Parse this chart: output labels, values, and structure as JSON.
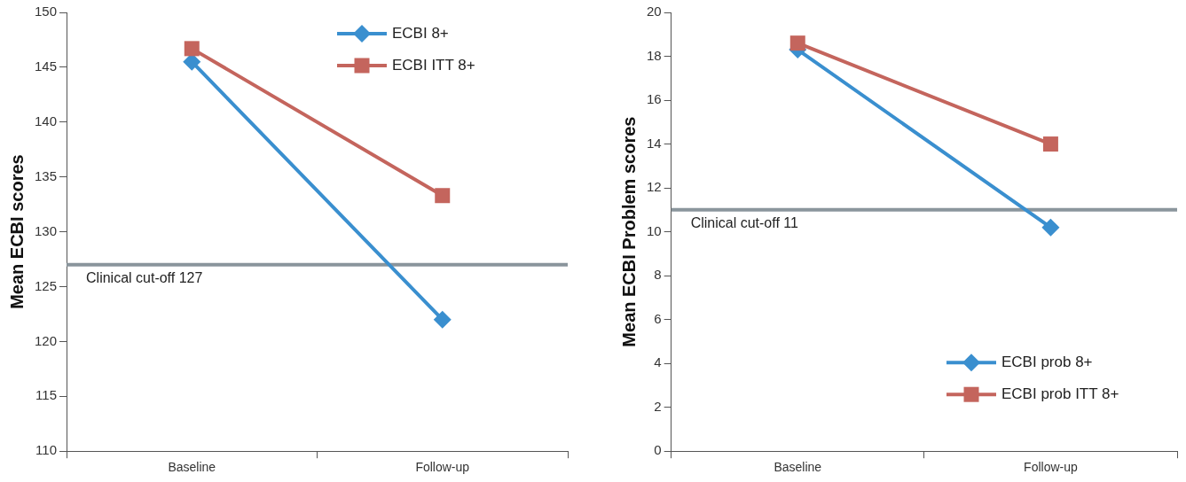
{
  "chart_data": [
    {
      "type": "line",
      "ylabel": "Mean ECBI scores",
      "categories": [
        "Baseline",
        "Follow-up"
      ],
      "series": [
        {
          "name": "ECBI 8+",
          "color": "#3a8fcf",
          "marker": "diamond",
          "values": [
            145.5,
            122
          ]
        },
        {
          "name": "ECBI ITT 8+",
          "color": "#c4655d",
          "marker": "square",
          "values": [
            146.7,
            133.3
          ]
        }
      ],
      "ylim": [
        110,
        150
      ],
      "yticks": [
        110,
        115,
        120,
        125,
        130,
        135,
        140,
        145,
        150
      ],
      "grid": false,
      "legend": "top right",
      "ref_lines": [
        {
          "axis": "y",
          "value": 127,
          "label": "Clinical cut-off 127",
          "color": "#8a959c"
        }
      ]
    },
    {
      "type": "line",
      "ylabel": "Mean ECBI Problem scores",
      "categories": [
        "Baseline",
        "Follow-up"
      ],
      "series": [
        {
          "name": "ECBI prob 8+",
          "color": "#3a8fcf",
          "marker": "diamond",
          "values": [
            18.3,
            10.2
          ]
        },
        {
          "name": "ECBI prob ITT 8+",
          "color": "#c4655d",
          "marker": "square",
          "values": [
            18.6,
            14
          ]
        }
      ],
      "ylim": [
        0,
        20
      ],
      "yticks": [
        0,
        2,
        4,
        6,
        8,
        10,
        12,
        14,
        16,
        18,
        20
      ],
      "grid": false,
      "legend": "bottom right",
      "ref_lines": [
        {
          "axis": "y",
          "value": 11,
          "label": "Clinical cut-off 11",
          "color": "#8a959c"
        }
      ]
    }
  ]
}
